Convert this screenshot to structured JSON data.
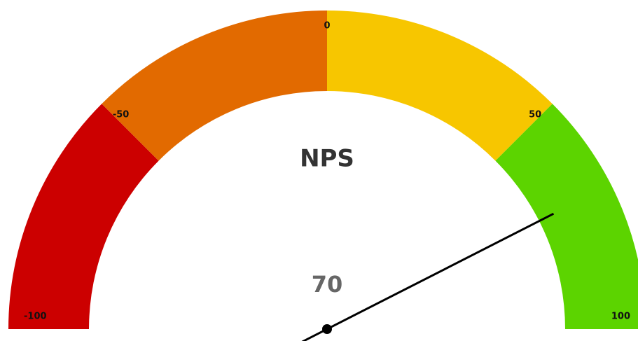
{
  "chart_data": {
    "type": "gauge",
    "title": "NPS",
    "value": 70,
    "lim": [
      -100,
      100
    ],
    "ticks": [
      -100,
      -50,
      0,
      50,
      100
    ],
    "bands": [
      {
        "from": -100,
        "to": -50,
        "color": "#cc0000"
      },
      {
        "from": -50,
        "to": 0,
        "color": "#e26a00"
      },
      {
        "from": 0,
        "to": 50,
        "color": "#f7c600"
      },
      {
        "from": 50,
        "to": 100,
        "color": "#5cd400"
      }
    ],
    "needle_color": "#000000"
  }
}
